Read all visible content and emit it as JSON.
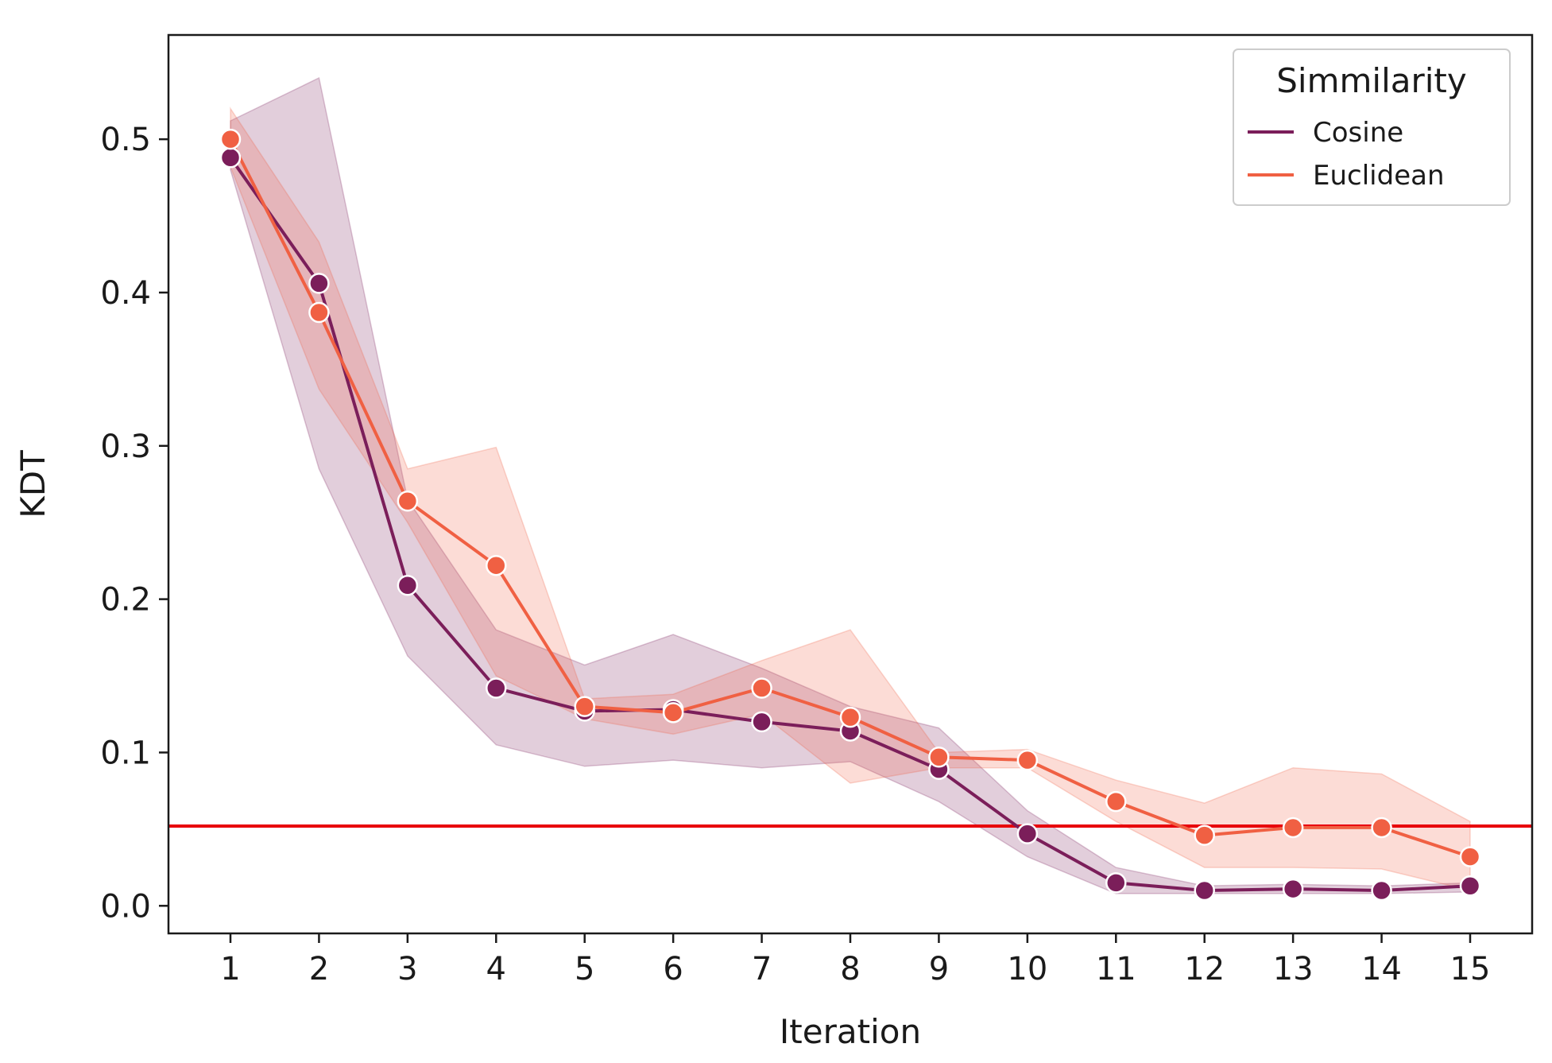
{
  "chart_data": {
    "type": "line",
    "title": "",
    "xlabel": "Iteration",
    "ylabel": "KDT",
    "x": [
      1,
      2,
      3,
      4,
      5,
      6,
      7,
      8,
      9,
      10,
      11,
      12,
      13,
      14,
      15
    ],
    "x_tick_labels": [
      "1",
      "2",
      "3",
      "4",
      "5",
      "6",
      "7",
      "8",
      "9",
      "10",
      "11",
      "12",
      "13",
      "14",
      "15"
    ],
    "y_ticks": [
      0.0,
      0.1,
      0.2,
      0.3,
      0.4,
      0.5
    ],
    "y_tick_labels": [
      "0.0",
      "0.1",
      "0.2",
      "0.3",
      "0.4",
      "0.5"
    ],
    "xlim": [
      0.3,
      15.7
    ],
    "ylim": [
      -0.018,
      0.568
    ],
    "grid": false,
    "legend": {
      "title": "Simmilarity",
      "position": "top-right"
    },
    "series": [
      {
        "name": "Cosine",
        "color": "#7b1e5a",
        "values": [
          0.488,
          0.406,
          0.209,
          0.142,
          0.127,
          0.128,
          0.12,
          0.114,
          0.089,
          0.047,
          0.015,
          0.01,
          0.011,
          0.01,
          0.013
        ],
        "ci_lower": [
          0.48,
          0.285,
          0.163,
          0.105,
          0.091,
          0.095,
          0.09,
          0.094,
          0.068,
          0.032,
          0.008,
          0.008,
          0.008,
          0.008,
          0.009
        ],
        "ci_upper": [
          0.512,
          0.54,
          0.265,
          0.18,
          0.157,
          0.177,
          0.155,
          0.13,
          0.116,
          0.062,
          0.025,
          0.013,
          0.014,
          0.013,
          0.015
        ]
      },
      {
        "name": "Euclidean",
        "color": "#f06043",
        "values": [
          0.5,
          0.387,
          0.264,
          0.222,
          0.13,
          0.126,
          0.142,
          0.123,
          0.097,
          0.095,
          0.068,
          0.046,
          0.051,
          0.051,
          0.032
        ],
        "ci_lower": [
          0.482,
          0.337,
          0.25,
          0.15,
          0.122,
          0.112,
          0.125,
          0.08,
          0.09,
          0.09,
          0.055,
          0.025,
          0.025,
          0.024,
          0.01
        ],
        "ci_upper": [
          0.52,
          0.433,
          0.285,
          0.299,
          0.135,
          0.138,
          0.16,
          0.18,
          0.1,
          0.102,
          0.082,
          0.067,
          0.09,
          0.086,
          0.055
        ]
      }
    ],
    "reference_line": {
      "y": 0.052,
      "color": "#e8000b"
    }
  }
}
